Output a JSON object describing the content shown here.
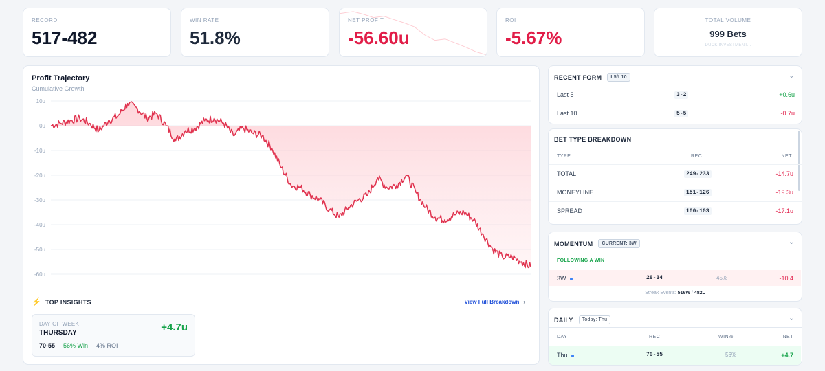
{
  "stats": {
    "record": {
      "label": "RECORD",
      "value": "517-482"
    },
    "win_rate": {
      "label": "WIN RATE",
      "value": "51.8%"
    },
    "net_profit": {
      "label": "NET PROFIT",
      "value": "-56.60u"
    },
    "roi": {
      "label": "ROI",
      "value": "-5.67%"
    },
    "total_volume": {
      "label": "TOTAL VOLUME",
      "value": "999 Bets",
      "sub": "DUCK INVESTMENT..."
    }
  },
  "chart_data": {
    "type": "line",
    "title": "Profit Trajectory",
    "subtitle": "Cumulative Growth",
    "ylim": [
      -60,
      10
    ],
    "yticks": [
      "10u",
      "0u",
      "-10u",
      "-20u",
      "-30u",
      "-40u",
      "-50u",
      "-60u"
    ],
    "grid": true,
    "x": [
      0,
      20,
      40,
      60,
      80,
      100,
      120,
      140,
      160,
      180,
      200,
      220,
      240,
      260,
      280,
      300,
      320,
      340,
      360,
      380,
      400,
      420,
      440,
      460,
      480,
      500,
      520,
      540,
      560,
      580,
      600,
      620,
      640,
      660,
      680,
      700,
      720,
      740,
      760,
      780,
      800,
      820,
      840,
      860,
      880,
      900,
      920,
      940,
      960,
      980,
      999
    ],
    "series": [
      {
        "values": [
          0,
          1,
          2,
          3,
          1,
          -2,
          2,
          4,
          9,
          7,
          3,
          5,
          0,
          -6,
          -2,
          -1,
          2,
          3,
          1,
          -4,
          -1,
          -3,
          -4,
          -9,
          -17,
          -24,
          -25,
          -28,
          -30,
          -34,
          -37,
          -33,
          -30,
          -28,
          -21,
          -25,
          -24,
          -20,
          -27,
          -33,
          -37,
          -38,
          -36,
          -35,
          -38,
          -44,
          -50,
          -53,
          -53,
          -55,
          -57
        ]
      }
    ]
  },
  "insights": {
    "heading": "TOP INSIGHTS",
    "link": "View Full Breakdown",
    "card": {
      "label": "DAY OF WEEK",
      "title": "THURSDAY",
      "value": "+4.7u",
      "record": "70-55",
      "win": "56% Win",
      "roi": "4% ROI"
    }
  },
  "recent_form": {
    "title": "RECENT FORM",
    "pill": "L5/L10",
    "rows": [
      {
        "label": "Last 5",
        "rec": "3-2",
        "net": "+0.6u"
      },
      {
        "label": "Last 10",
        "rec": "5-5",
        "net": "-0.7u"
      }
    ]
  },
  "bet_type": {
    "title": "BET TYPE BREAKDOWN",
    "headers": {
      "type": "TYPE",
      "rec": "REC",
      "net": "NET"
    },
    "rows": [
      {
        "type": "TOTAL",
        "rec": "249-233",
        "net": "-14.7u"
      },
      {
        "type": "MONEYLINE",
        "rec": "151-126",
        "net": "-19.3u"
      },
      {
        "type": "SPREAD",
        "rec": "100-103",
        "net": "-17.1u"
      }
    ]
  },
  "momentum": {
    "title": "MOMENTUM",
    "pill": "CURRENT: 3W",
    "section": "FOLLOWING A WIN",
    "row": {
      "streak": "3W",
      "rec": "28-34",
      "pct": "45%",
      "net": "-10.4"
    },
    "footer_label": "Streak Events:",
    "footer_w": "516W",
    "footer_sep": "/",
    "footer_l": "482L"
  },
  "daily": {
    "title": "DAILY",
    "pill": "Today: Thu",
    "headers": {
      "day": "DAY",
      "rec": "REC",
      "win": "WIN%",
      "net": "NET"
    },
    "row": {
      "day": "Thu",
      "rec": "70-55",
      "win": "56%",
      "net": "+4.7"
    }
  },
  "colors": {
    "accent_red": "#e11d48",
    "positive": "#16a34a",
    "line": "#e0334f"
  }
}
